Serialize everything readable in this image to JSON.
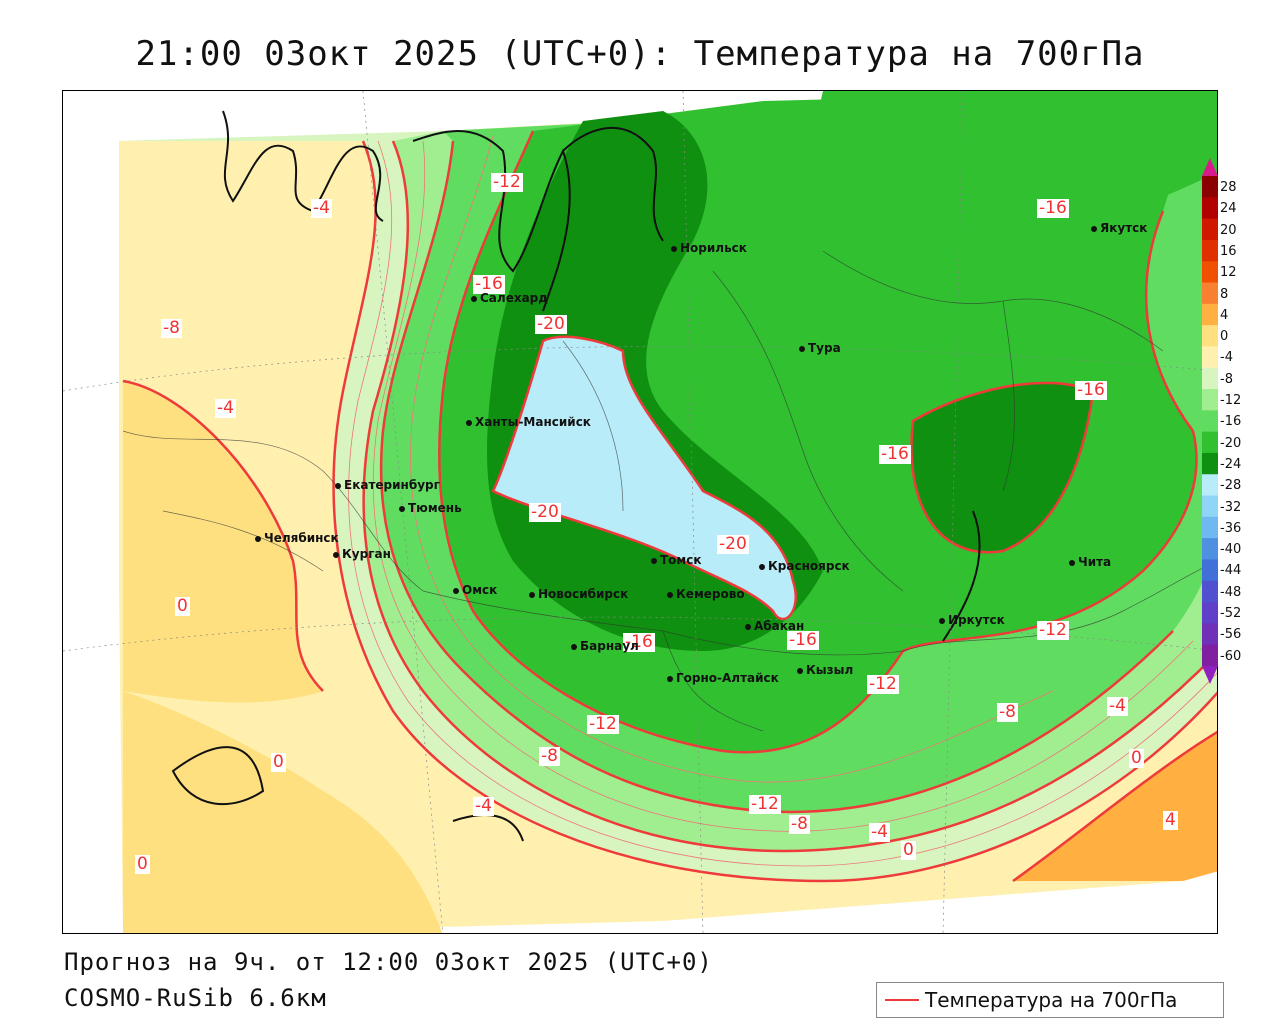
{
  "title": "21:00 03окт 2025 (UTC+0): Температура на 700гПа",
  "footer": {
    "forecast": "Прогноз на 9ч. от 12:00 03окт 2025 (UTC+0)",
    "model": "COSMO-RuSib 6.6км"
  },
  "legend": {
    "label": "Температура на 700гПа",
    "line_color": "#ee3a3a"
  },
  "colorbar": {
    "levels": [
      "28",
      "24",
      "20",
      "16",
      "12",
      "8",
      "4",
      "0",
      "-4",
      "-8",
      "-12",
      "-16",
      "-20",
      "-24",
      "-28",
      "-32",
      "-36",
      "-40",
      "-44",
      "-48",
      "-52",
      "-56",
      "-60"
    ],
    "colors": [
      "#8b0000",
      "#b00000",
      "#d01800",
      "#e03000",
      "#f05000",
      "#f88030",
      "#ffb040",
      "#ffe080",
      "#fff0b0",
      "#d8f5c0",
      "#a0ee90",
      "#60dd60",
      "#30c030",
      "#109010",
      "#b8ecf8",
      "#90d4f8",
      "#70b8f0",
      "#5090e0",
      "#4070d8",
      "#5050d0",
      "#6040c8",
      "#7030b8",
      "#8020a0"
    ],
    "top_arrow_color": "#d81b8c",
    "bottom_arrow_color": "#9020c0"
  },
  "isotherm_labels": [
    {
      "text": "-12"
    },
    {
      "text": "-4"
    },
    {
      "text": "-8"
    },
    {
      "text": "-16"
    },
    {
      "text": "-4"
    },
    {
      "text": "-16"
    },
    {
      "text": "-20"
    },
    {
      "text": "-20"
    },
    {
      "text": "-20"
    },
    {
      "text": "-16"
    },
    {
      "text": "-16"
    },
    {
      "text": "-16"
    },
    {
      "text": "-16"
    },
    {
      "text": "-12"
    },
    {
      "text": "-12"
    },
    {
      "text": "-8"
    },
    {
      "text": "-4"
    },
    {
      "text": "0"
    },
    {
      "text": "-12"
    },
    {
      "text": "-8"
    },
    {
      "text": "-12"
    },
    {
      "text": "-8"
    },
    {
      "text": "-4"
    },
    {
      "text": "0"
    },
    {
      "text": "-4"
    },
    {
      "text": "0"
    },
    {
      "text": "0"
    },
    {
      "text": "0"
    },
    {
      "text": "4"
    }
  ],
  "cities": [
    {
      "name": "Норильск"
    },
    {
      "name": "Якутск"
    },
    {
      "name": "Салехард"
    },
    {
      "name": "Тура"
    },
    {
      "name": "Ханты-Мансийск"
    },
    {
      "name": "Екатеринбург"
    },
    {
      "name": "Тюмень"
    },
    {
      "name": "Челябинск"
    },
    {
      "name": "Курган"
    },
    {
      "name": "Омск"
    },
    {
      "name": "Новосибирск"
    },
    {
      "name": "Томск"
    },
    {
      "name": "Кемерово"
    },
    {
      "name": "Красноярск"
    },
    {
      "name": "Барнаул"
    },
    {
      "name": "Абакан"
    },
    {
      "name": "Горно-Алтайск"
    },
    {
      "name": "Кызыл"
    },
    {
      "name": "Иркутск"
    },
    {
      "name": "Чита"
    }
  ]
}
